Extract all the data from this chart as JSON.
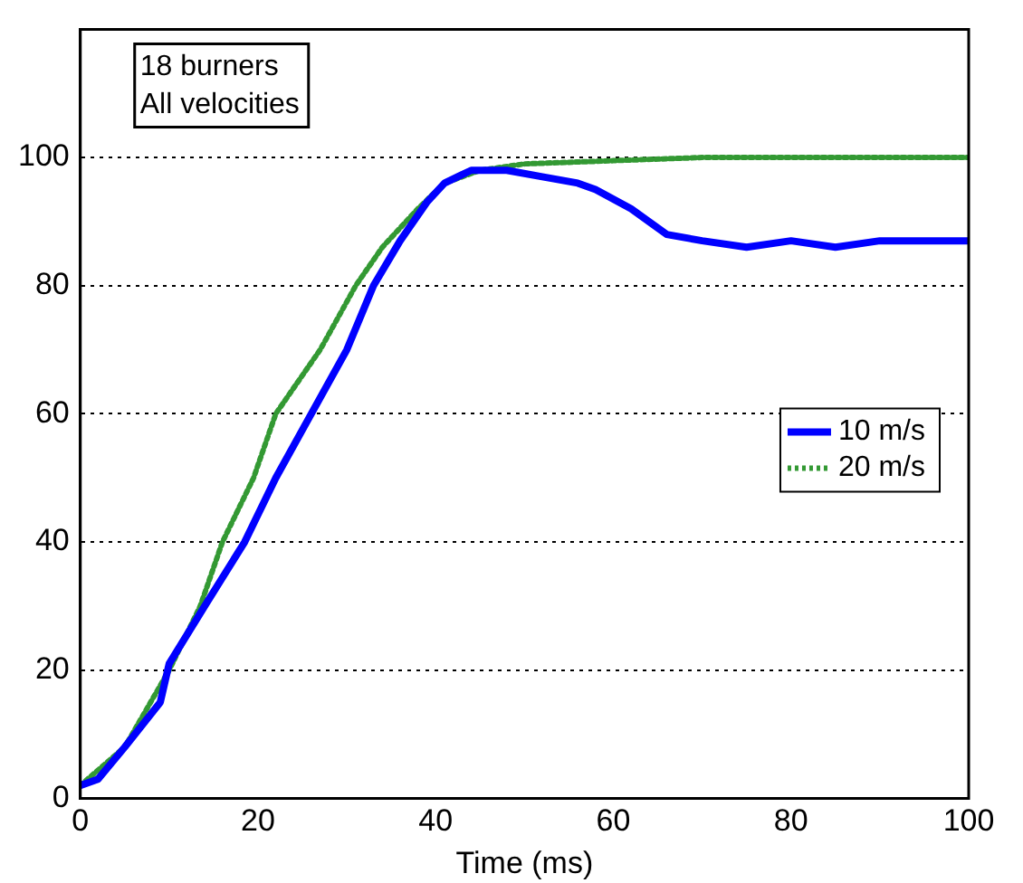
{
  "chart_data": {
    "type": "line",
    "xlabel": "Time (ms)",
    "annotations": [
      "18 burners\nAll velocities"
    ],
    "xlim": [
      0,
      100
    ],
    "xticks": [
      0,
      20,
      40,
      60,
      80,
      100
    ],
    "ylim": [
      0,
      120
    ],
    "yticks": [
      0,
      20,
      40,
      60,
      80,
      100
    ],
    "grid": "y",
    "legend": "right",
    "marker": "none",
    "series": [
      {
        "name": "10 m/s",
        "color": "#0000ff",
        "line_style": "solid",
        "x": [
          0,
          2,
          5,
          9,
          10,
          14,
          18.5,
          22,
          26,
          30,
          33,
          36,
          39,
          41,
          44,
          48,
          52,
          56,
          58,
          62,
          66,
          70,
          75,
          80,
          85,
          90,
          95,
          100
        ],
        "values": [
          2,
          3,
          8,
          15,
          21,
          30,
          40,
          50,
          60,
          70,
          80,
          87,
          93,
          96,
          98,
          98,
          97,
          96,
          95,
          92,
          88,
          87,
          86,
          87,
          86,
          87,
          87,
          87
        ]
      },
      {
        "name": "20 m/s",
        "color": "#339933",
        "line_style": "dotted",
        "x": [
          0,
          5,
          10,
          13.5,
          16,
          19.5,
          22,
          27,
          31,
          34,
          38,
          41,
          45,
          50,
          60,
          70,
          80,
          90,
          100
        ],
        "values": [
          2,
          8,
          20,
          30,
          40,
          50,
          60,
          70,
          80,
          86,
          92,
          96,
          98,
          99,
          99.5,
          100,
          100,
          100,
          100
        ]
      }
    ]
  }
}
